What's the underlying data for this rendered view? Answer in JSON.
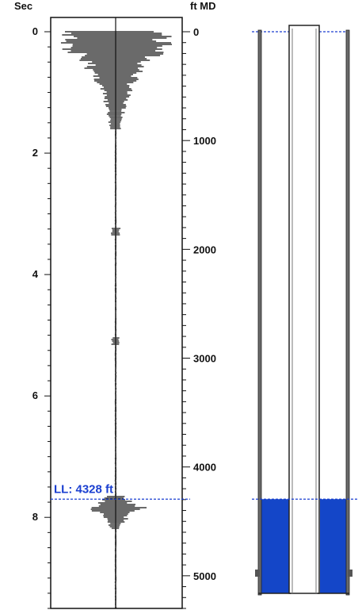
{
  "log_panel": {
    "left_axis_title": "Sec",
    "right_axis_title": "ft MD",
    "time_ticks": [
      {
        "value": 0,
        "label": "0"
      },
      {
        "value": 2,
        "label": "2"
      },
      {
        "value": 4,
        "label": "4"
      },
      {
        "value": 6,
        "label": "6"
      },
      {
        "value": 8,
        "label": "8"
      }
    ],
    "depth_ticks": [
      {
        "value": 0,
        "label": "0"
      },
      {
        "value": 1000,
        "label": "1000"
      },
      {
        "value": 2000,
        "label": "2000"
      },
      {
        "value": 3000,
        "label": "3000"
      },
      {
        "value": 4000,
        "label": "4000"
      },
      {
        "value": 5000,
        "label": "5000"
      }
    ],
    "time_range": [
      0,
      9.5
    ],
    "depth_range": [
      0,
      5300
    ],
    "liquid_level": {
      "label": "LL: 4328 ft",
      "depth_ft": 4328,
      "time_sec": 7.7
    }
  },
  "well_panel": {
    "fluid_top_depth_ft": 4328
  },
  "colors": {
    "fluid": "#1446c8",
    "marker": "#1a3fd0",
    "ink": "#111111",
    "wall": "#555555"
  }
}
